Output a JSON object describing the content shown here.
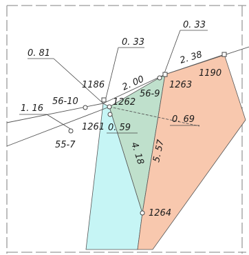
{
  "colors": {
    "cyan_parcel": "#c6f5f5",
    "green_parcel": "#bfe0cc",
    "peach_parcel": "#f8c8ae",
    "line": "#555555",
    "frame_dash": "#9a9a9a"
  },
  "parcels": {
    "p1190": "1190",
    "p1186": "1186",
    "p1261": "1261"
  },
  "points": {
    "pt1262": "1262",
    "pt1263": "1263",
    "pt1264": "1264",
    "pt56_9": "56-9",
    "pt56_10": "56-10",
    "pt55_7": "55-7"
  },
  "distances": {
    "d0_33_top": "0. 33",
    "d0_33_mid": "0. 33",
    "d0_81": "0. 81",
    "d1_16": "1. 16",
    "d2_38": "2. 38",
    "d2_00": "2. 00",
    "d0_69": "0. 69",
    "d0_59": "0. 59",
    "d5_57": "5. 57",
    "d4_18": "4. 18"
  }
}
